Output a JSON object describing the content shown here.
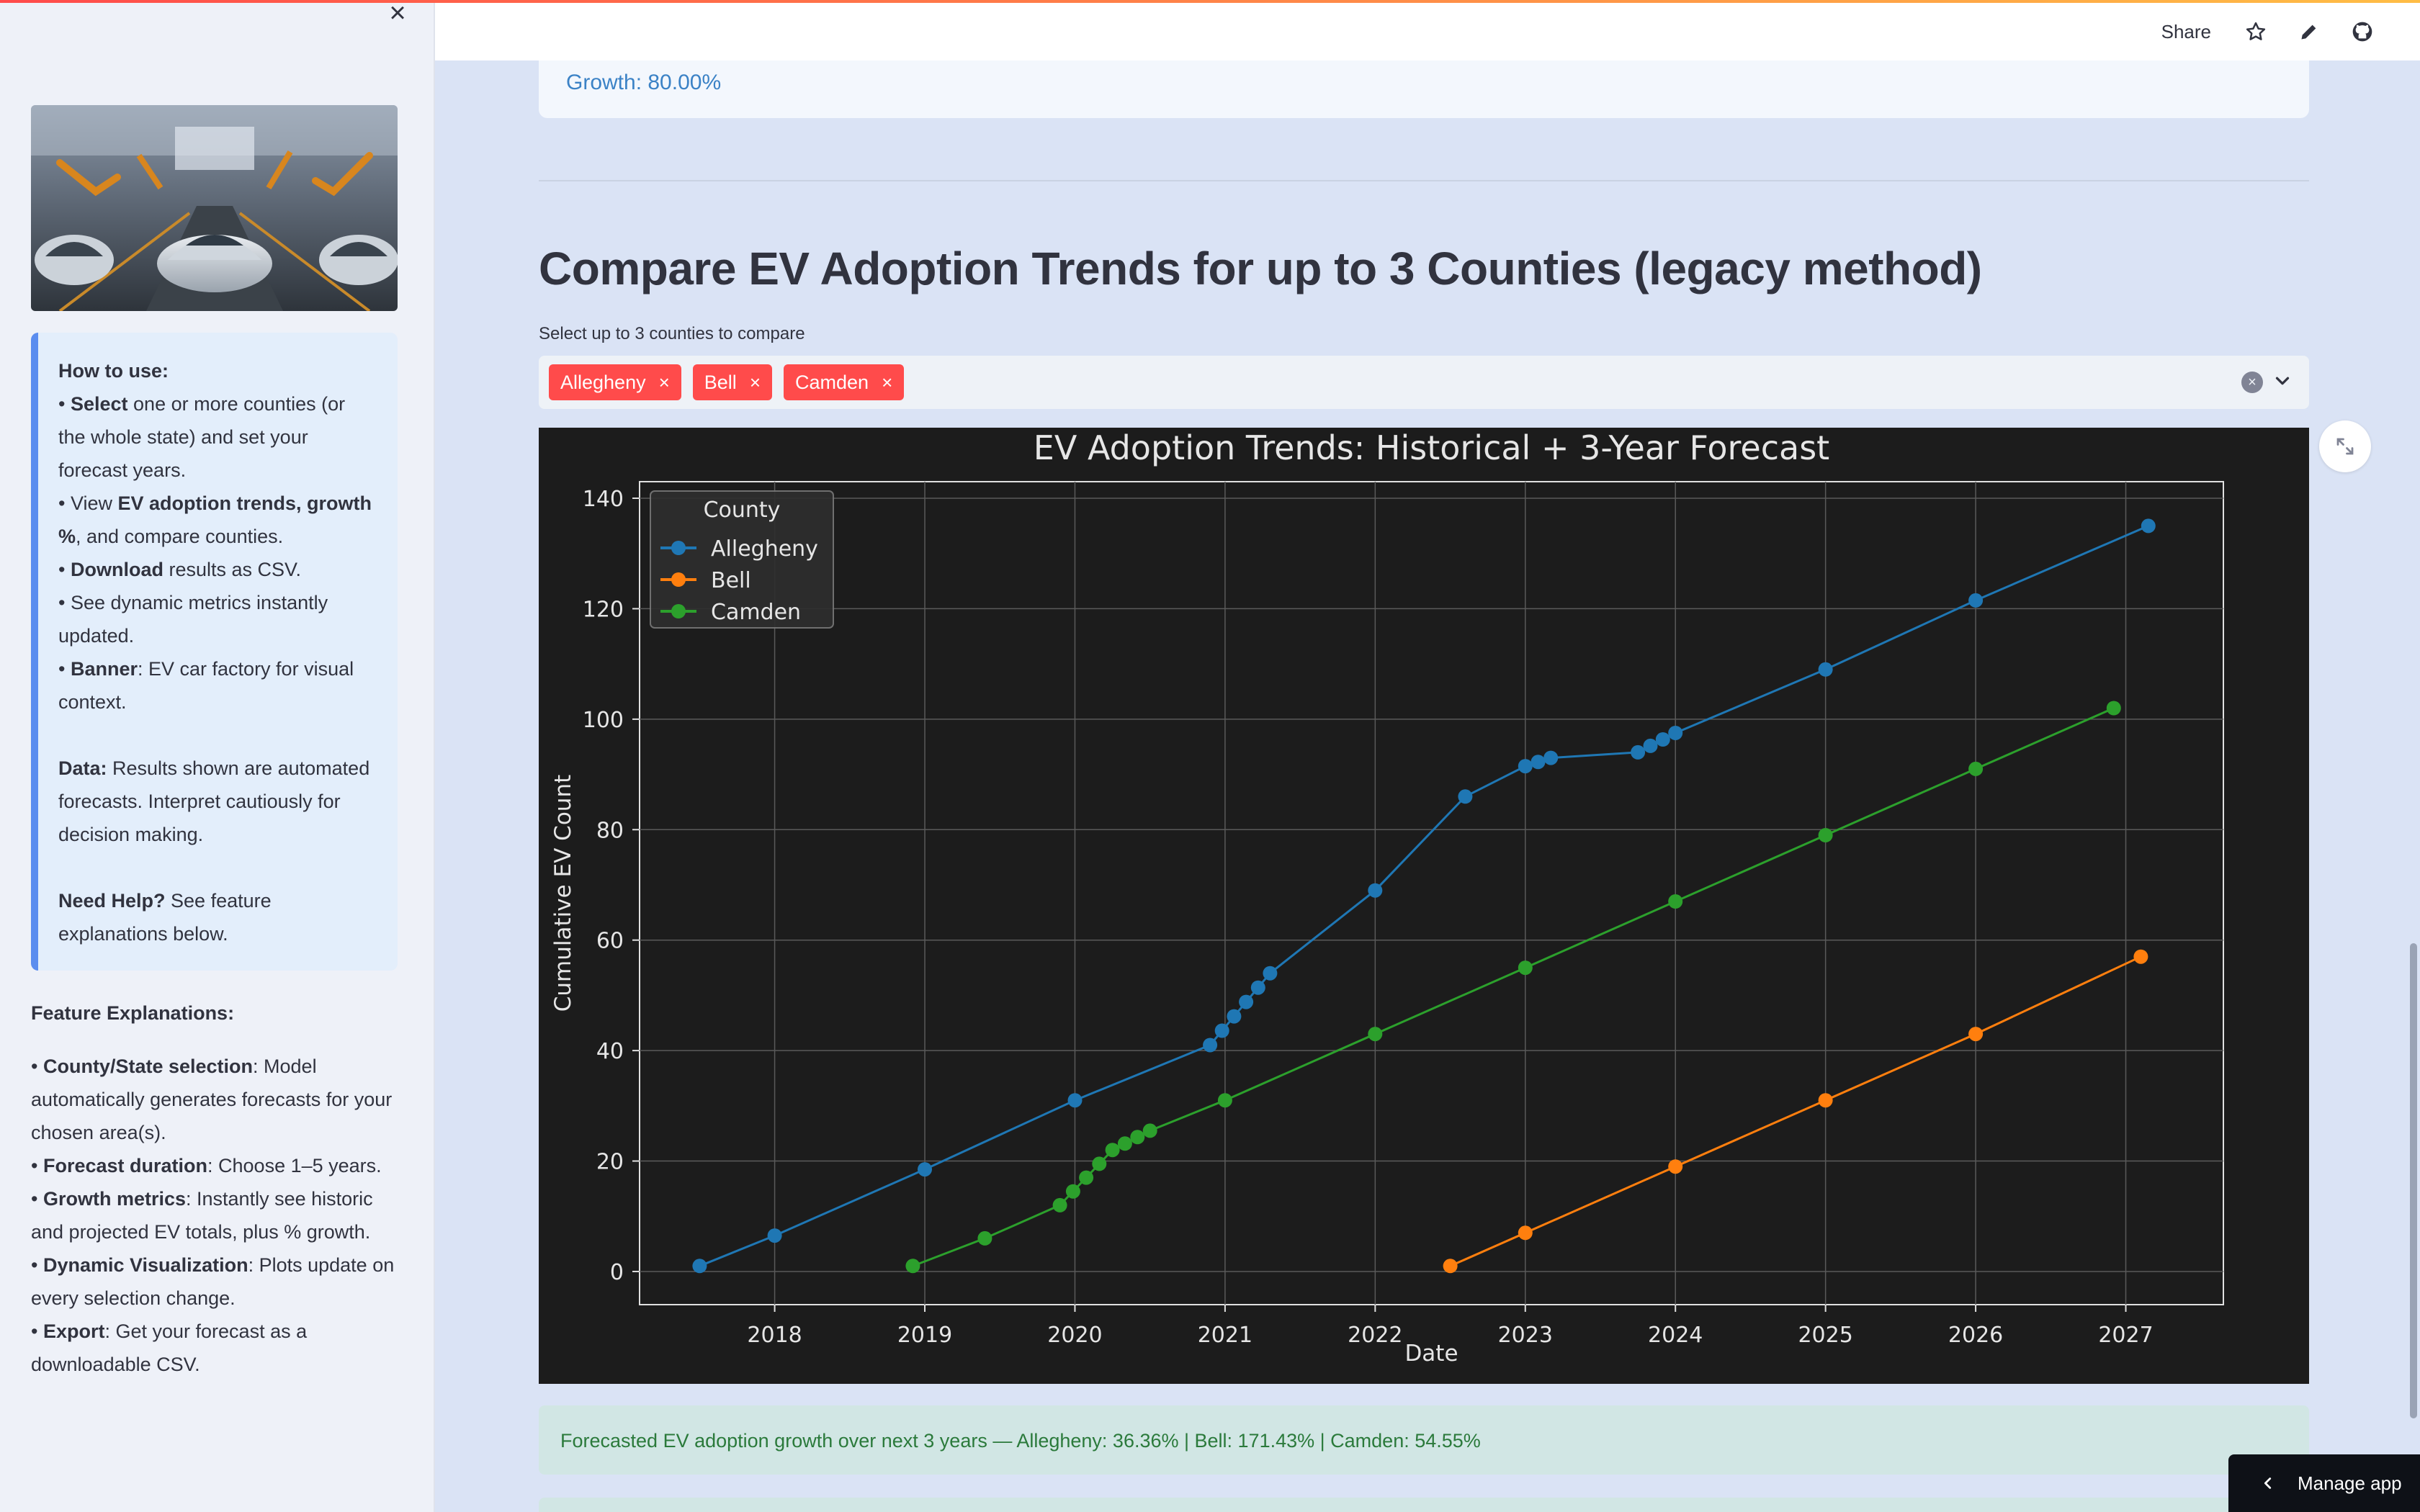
{
  "sidebar": {
    "info": {
      "how_to_use": "How to use:",
      "b1_bold": "Select",
      "b1_rest": " one or more counties (or the whole state) and set your forecast years.",
      "b2_pre": "View ",
      "b2_bold": "EV adoption trends, growth %",
      "b2_rest": ", and compare counties.",
      "b3_bold": "Download",
      "b3_rest": " results as CSV.",
      "b4": "See dynamic metrics instantly updated.",
      "b5_bold": "Banner",
      "b5_rest": ": EV car factory for visual context.",
      "data_bold": "Data:",
      "data_rest": " Results shown are automated forecasts. Interpret cautiously for decision making.",
      "help_bold": "Need Help?",
      "help_rest": " See feature explanations below."
    },
    "features": {
      "title": "Feature Explanations:",
      "f1_bold": "County/State selection",
      "f1_rest": ": Model automatically generates forecasts for your chosen area(s).",
      "f2_bold": "Forecast duration",
      "f2_rest": ": Choose 1–5 years.",
      "f3_bold": "Growth metrics",
      "f3_rest": ": Instantly see historic and projected EV totals, plus % growth.",
      "f4_bold": "Dynamic Visualization",
      "f4_rest": ": Plots update on every selection change.",
      "f5_bold": "Export",
      "f5_rest": ": Get your forecast as a downloadable CSV."
    }
  },
  "header": {
    "share": "Share"
  },
  "main": {
    "growth_text": "Growth: 80.00%",
    "section_title": "Compare EV Adoption Trends for up to 3 Counties (legacy method)",
    "select_label": "Select up to 3 counties to compare",
    "tags": [
      "Allegheny",
      "Bell",
      "Camden"
    ],
    "success_text": "Forecasted EV adoption growth over next 3 years — Allegheny: 36.36% | Bell: 171.43% | Camden: 54.55%",
    "manage_app": "Manage app"
  },
  "colors": {
    "accent": "#ff4b4b",
    "allegheny": "#1f77b4",
    "bell": "#ff7f0e",
    "camden": "#2ca02c"
  },
  "chart_data": {
    "type": "line",
    "title": "EV Adoption Trends: Historical + 3-Year Forecast",
    "xlabel": "Date",
    "ylabel": "Cumulative EV Count",
    "legend_title": "County",
    "legend_position": "top-left",
    "grid": true,
    "xlim": [
      2017.1,
      2027.65
    ],
    "ylim": [
      -6,
      143
    ],
    "x_ticks": [
      2018,
      2019,
      2020,
      2021,
      2022,
      2023,
      2024,
      2025,
      2026,
      2027
    ],
    "y_ticks": [
      0,
      20,
      40,
      60,
      80,
      100,
      120,
      140
    ],
    "series": [
      {
        "name": "Allegheny",
        "color": "#1f77b4",
        "points": [
          [
            2017.5,
            1
          ],
          [
            2018.0,
            6.5
          ],
          [
            2019.0,
            18.5
          ],
          [
            2020.0,
            31
          ],
          [
            2020.9,
            41
          ],
          [
            2021.3,
            54
          ],
          [
            2022.0,
            69
          ],
          [
            2022.6,
            86
          ],
          [
            2023.0,
            91.5
          ],
          [
            2023.17,
            93
          ],
          [
            2023.75,
            94
          ],
          [
            2024.0,
            97.5
          ],
          [
            2025.0,
            109
          ],
          [
            2026.0,
            121.5
          ],
          [
            2027.15,
            135
          ]
        ]
      },
      {
        "name": "Bell",
        "color": "#ff7f0e",
        "points": [
          [
            2022.5,
            1
          ],
          [
            2023.0,
            7
          ],
          [
            2024.0,
            19
          ],
          [
            2025.0,
            31
          ],
          [
            2026.0,
            43
          ],
          [
            2027.1,
            57
          ]
        ]
      },
      {
        "name": "Camden",
        "color": "#2ca02c",
        "points": [
          [
            2018.92,
            1
          ],
          [
            2019.4,
            6
          ],
          [
            2019.9,
            12
          ],
          [
            2020.25,
            22
          ],
          [
            2020.5,
            25.5
          ],
          [
            2021.0,
            31
          ],
          [
            2022.0,
            43
          ],
          [
            2023.0,
            55
          ],
          [
            2024.0,
            67
          ],
          [
            2025.0,
            79
          ],
          [
            2026.0,
            91
          ],
          [
            2026.92,
            102
          ]
        ]
      }
    ]
  }
}
